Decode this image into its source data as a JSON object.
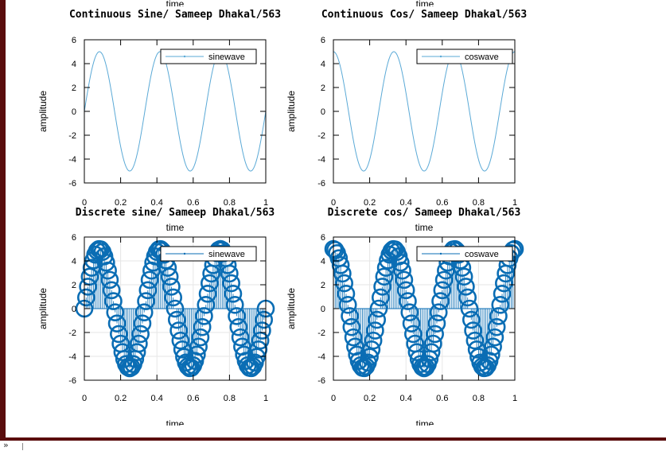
{
  "chart_data": [
    {
      "type": "line",
      "title": "Continuous Sine/ Sameep Dhakal/563",
      "xlabel": "time",
      "ylabel": "amplitude",
      "xlim": [
        0,
        1
      ],
      "ylim": [
        -6,
        6
      ],
      "xticks": [
        "0",
        "0.2",
        "0.4",
        "0.6",
        "0.8",
        "1"
      ],
      "yticks": [
        "6",
        "4",
        "2",
        "0",
        "-2",
        "-4",
        "-6"
      ],
      "legend_position": "top-right",
      "grid": false,
      "series": [
        {
          "name": "sinewave",
          "function": "5*sin(2*pi*3*t)",
          "amplitude": 5,
          "frequency": 3,
          "phase": "sin"
        }
      ]
    },
    {
      "type": "line",
      "title": "Continuous Cos/ Sameep Dhakal/563",
      "xlabel": "time",
      "ylabel": "amplitude",
      "xlim": [
        0,
        1
      ],
      "ylim": [
        -6,
        6
      ],
      "xticks": [
        "0",
        "0.2",
        "0.4",
        "0.6",
        "0.8",
        "1"
      ],
      "yticks": [
        "6",
        "4",
        "2",
        "0",
        "-2",
        "-4",
        "-6"
      ],
      "legend_position": "top-right",
      "grid": false,
      "series": [
        {
          "name": "coswave",
          "function": "5*cos(2*pi*3*t)",
          "amplitude": 5,
          "frequency": 3,
          "phase": "cos"
        }
      ]
    },
    {
      "type": "stem",
      "title": "Discrete sine/ Sameep Dhakal/563",
      "xlabel": "time",
      "ylabel": "amplitude",
      "xlim": [
        0,
        1
      ],
      "ylim": [
        -6,
        6
      ],
      "xticks": [
        "0",
        "0.2",
        "0.4",
        "0.6",
        "0.8",
        "1"
      ],
      "yticks": [
        "6",
        "4",
        "2",
        "0",
        "-2",
        "-4",
        "-6"
      ],
      "legend_position": "top-right",
      "grid": true,
      "series": [
        {
          "name": "sinewave",
          "function": "5*sin(2*pi*3*t)",
          "amplitude": 5,
          "frequency": 3,
          "phase": "sin",
          "samples": 101,
          "sample_step": 0.01
        }
      ]
    },
    {
      "type": "stem",
      "title": "Discrete cos/ Sameep Dhakal/563",
      "xlabel": "time",
      "ylabel": "amplitude",
      "xlim": [
        0,
        1
      ],
      "ylim": [
        -6,
        6
      ],
      "xticks": [
        "0",
        "0.2",
        "0.4",
        "0.6",
        "0.8",
        "1"
      ],
      "yticks": [
        "6",
        "4",
        "2",
        "0",
        "-2",
        "-4",
        "-6"
      ],
      "legend_position": "top-right",
      "grid": true,
      "series": [
        {
          "name": "coswave",
          "function": "5*cos(2*pi*3*t)",
          "amplitude": 5,
          "frequency": 3,
          "phase": "cos",
          "samples": 101,
          "sample_step": 0.01
        }
      ]
    }
  ],
  "top_cut_label": "time",
  "colors": {
    "continuous_line": "#5aa9d6",
    "discrete_marker": "#0a6db4",
    "stem": "#0a6db4",
    "grid": "#e6e6e6",
    "frame": "#5a0d0d"
  },
  "footer": {
    "glyph": "»"
  }
}
